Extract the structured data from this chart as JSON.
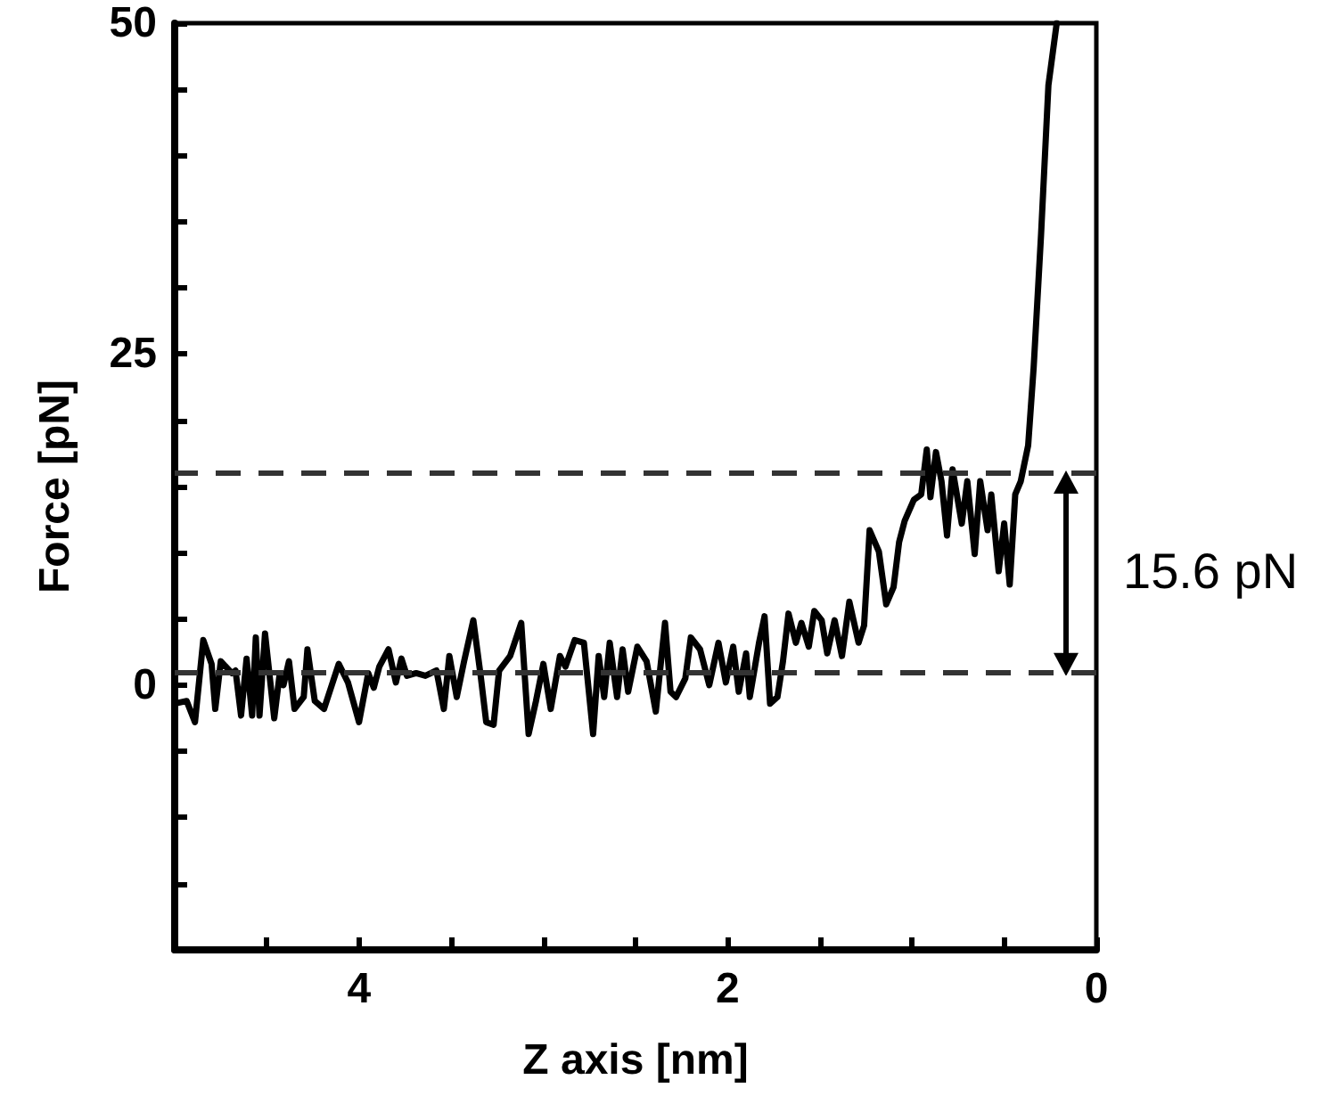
{
  "chart_data": {
    "type": "line",
    "xlabel": "Z axis [nm]",
    "ylabel": "Force [pN]",
    "xlim": [
      5,
      0
    ],
    "ylim": [
      -20,
      50
    ],
    "xticks": [
      {
        "value": 4.5,
        "label": null
      },
      4,
      {
        "value": 3.5,
        "label": null
      },
      {
        "value": 3,
        "label": null
      },
      {
        "value": 2.5,
        "label": null
      },
      2,
      {
        "value": 1.5,
        "label": null
      },
      {
        "value": 1,
        "label": null
      },
      {
        "value": 0.5,
        "label": null
      },
      0
    ],
    "yticks": [
      {
        "value": -15,
        "label": null
      },
      {
        "value": -10,
        "label": null
      },
      {
        "value": -5,
        "label": null
      },
      0,
      {
        "value": 5,
        "label": null
      },
      {
        "value": 10,
        "label": null
      },
      {
        "value": 15,
        "label": null
      },
      {
        "value": 20,
        "label": null
      },
      25,
      {
        "value": 30,
        "label": null
      },
      {
        "value": 35,
        "label": null
      },
      {
        "value": 40,
        "label": null
      },
      {
        "value": 45,
        "label": null
      },
      50
    ],
    "grid": false,
    "marker": "none",
    "line_style": "solid",
    "series": [
      {
        "color": "#000000",
        "x": [
          5.0,
          4.935,
          4.89,
          4.845,
          4.8,
          4.78,
          4.75,
          4.69,
          4.67,
          4.64,
          4.61,
          4.58,
          4.56,
          4.54,
          4.51,
          4.46,
          4.43,
          4.41,
          4.38,
          4.35,
          4.3,
          4.28,
          4.24,
          4.19,
          4.11,
          4.06,
          4.0,
          3.95,
          3.92,
          3.89,
          3.84,
          3.8,
          3.77,
          3.74,
          3.69,
          3.64,
          3.58,
          3.54,
          3.51,
          3.47,
          3.43,
          3.38,
          3.34,
          3.31,
          3.27,
          3.24,
          3.18,
          3.12,
          3.08,
          3.04,
          3.0,
          2.96,
          2.91,
          2.88,
          2.83,
          2.78,
          2.73,
          2.7,
          2.67,
          2.64,
          2.6,
          2.57,
          2.54,
          2.49,
          2.44,
          2.39,
          2.34,
          2.31,
          2.28,
          2.23,
          2.2,
          2.15,
          2.1,
          2.05,
          2.01,
          1.97,
          1.94,
          1.9,
          1.88,
          1.83,
          1.8,
          1.77,
          1.73,
          1.7,
          1.67,
          1.63,
          1.6,
          1.56,
          1.53,
          1.49,
          1.46,
          1.42,
          1.38,
          1.34,
          1.29,
          1.26,
          1.23,
          1.18,
          1.14,
          1.1,
          1.07,
          1.04,
          0.99,
          0.95,
          0.92,
          0.9,
          0.87,
          0.84,
          0.81,
          0.78,
          0.73,
          0.7,
          0.66,
          0.63,
          0.59,
          0.57,
          0.53,
          0.5,
          0.47,
          0.44,
          0.41,
          0.37,
          0.34,
          0.3,
          0.26,
          0.215
        ],
        "values": [
          -1.4,
          -1.2,
          -2.8,
          3.4,
          1.6,
          -1.8,
          1.8,
          0.9,
          1.1,
          -2.3,
          2.0,
          -2.3,
          3.6,
          -2.3,
          3.9,
          -2.5,
          0.9,
          0,
          1.8,
          -1.8,
          -0.9,
          2.7,
          -1.2,
          -1.8,
          1.6,
          0.2,
          -2.8,
          0.9,
          -0.2,
          1.4,
          2.7,
          0.2,
          2.0,
          0.7,
          0.9,
          0.7,
          1.1,
          -1.8,
          2.2,
          -0.9,
          1.8,
          4.9,
          0.7,
          -2.8,
          -3.0,
          1.1,
          2.2,
          4.7,
          -3.7,
          -1.2,
          1.6,
          -1.8,
          2.2,
          1.4,
          3.4,
          3.2,
          -3.7,
          2.2,
          -0.9,
          3.2,
          -0.9,
          2.7,
          -0.5,
          2.9,
          1.8,
          -2.0,
          4.7,
          -0.5,
          -0.9,
          0.5,
          3.6,
          2.7,
          0,
          3.2,
          0.2,
          2.9,
          -0.5,
          2.4,
          -0.9,
          3.2,
          5.2,
          -1.4,
          -0.9,
          1.8,
          5.4,
          3.2,
          4.7,
          2.9,
          5.6,
          4.9,
          2.4,
          4.9,
          2.2,
          6.3,
          3.2,
          4.5,
          11.7,
          10.1,
          6.1,
          7.4,
          10.8,
          12.4,
          14.0,
          14.4,
          17.8,
          14.2,
          17.6,
          15.4,
          11.3,
          16.3,
          12.2,
          15.4,
          9.9,
          15.4,
          11.7,
          14.4,
          8.6,
          12.2,
          7.6,
          14.4,
          15.4,
          18.1,
          24.0,
          34.0,
          45.3,
          50
        ]
      }
    ],
    "ref_lines": [
      {
        "axis": "y",
        "value": 16,
        "color": "#333333",
        "line_style": "dashed"
      },
      {
        "axis": "y",
        "value": 1,
        "color": "#333333",
        "line_style": "dashed"
      }
    ],
    "annotations": [
      "15.6 pN"
    ]
  }
}
